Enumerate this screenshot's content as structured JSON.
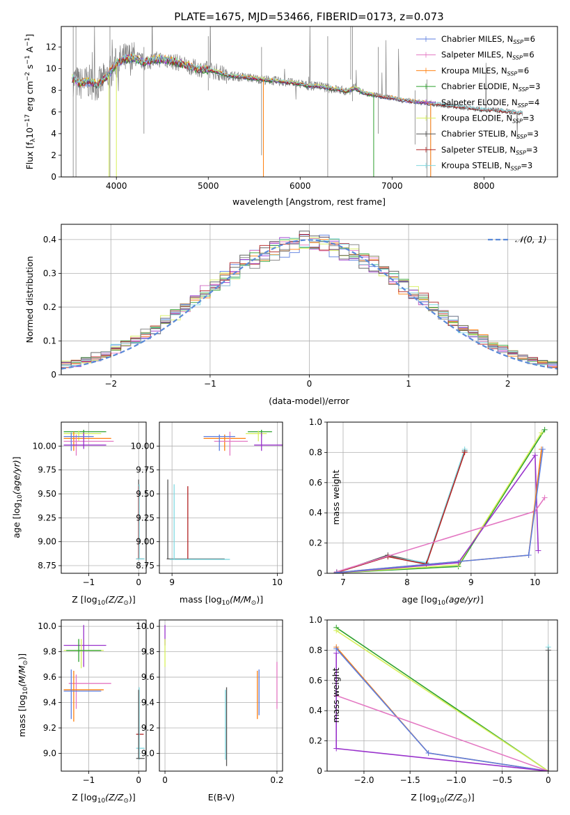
{
  "figure": {
    "title": "PLATE=1675, MJD=53466, FIBERID=0173, z=0.073"
  },
  "colors": {
    "chabrier_miles": "#5b7ee0",
    "salpeter_miles": "#e377c2",
    "kroupa_miles": "#ff7f0e",
    "chabrier_elodie": "#2ca02c",
    "salpeter_elodie": "#9932cc",
    "kroupa_elodie": "#d6ef5a",
    "chabrier_stelib": "#555555",
    "salpeter_stelib": "#b22222",
    "kroupa_stelib": "#7fd8e0",
    "data_gray": "#7f7f7f",
    "normal_curve": "#5b8ad8"
  },
  "chart_data": [
    {
      "id": "spectrum",
      "type": "line",
      "title": "PLATE=1675, MJD=53466, FIBERID=0173, z=0.073",
      "xlabel": "wavelength [Angstrom, rest frame]",
      "ylabel_main": "Flux [f",
      "ylabel_sub": "λ",
      "ylabel_rest": "10",
      "ylabel_tail": " erg cm",
      "xlim": [
        3400,
        8800
      ],
      "ylim": [
        0,
        13.9
      ],
      "xticks": [
        4000,
        5000,
        6000,
        7000,
        8000
      ],
      "yticks": [
        0,
        2,
        4,
        6,
        8,
        10,
        12
      ],
      "grid": false,
      "legend_position": "top-right",
      "legend": [
        {
          "prefix": "Chabrier MILES, N",
          "sub": "SSP",
          "suffix": "=6",
          "color_key": "chabrier_miles"
        },
        {
          "prefix": "Salpeter MILES, N",
          "sub": "SSP",
          "suffix": "=6",
          "color_key": "salpeter_miles"
        },
        {
          "prefix": "Kroupa MILES, N",
          "sub": "SSP",
          "suffix": "=6",
          "color_key": "kroupa_miles"
        },
        {
          "prefix": "Chabrier ELODIE, N",
          "sub": "SSP",
          "suffix": "=3",
          "color_key": "chabrier_elodie"
        },
        {
          "prefix": "Salpeter ELODIE, N",
          "sub": "SSP",
          "suffix": "=4",
          "color_key": "salpeter_elodie"
        },
        {
          "prefix": "Kroupa ELODIE, N",
          "sub": "SSP",
          "suffix": "=3",
          "color_key": "kroupa_elodie"
        },
        {
          "prefix": "Chabrier STELIB, N",
          "sub": "SSP",
          "suffix": "=3",
          "color_key": "chabrier_stelib"
        },
        {
          "prefix": "Salpeter STELIB, N",
          "sub": "SSP",
          "suffix": "=3",
          "color_key": "salpeter_stelib"
        },
        {
          "prefix": "Kroupa STELIB, N",
          "sub": "SSP",
          "suffix": "=3",
          "color_key": "kroupa_stelib"
        }
      ],
      "model_continuum": [
        [
          3500,
          9.2
        ],
        [
          3600,
          8.6
        ],
        [
          3700,
          8.8
        ],
        [
          3800,
          8.5
        ],
        [
          3900,
          9.3
        ],
        [
          4000,
          10.5
        ],
        [
          4100,
          10.9
        ],
        [
          4200,
          11.0
        ],
        [
          4300,
          10.6
        ],
        [
          4400,
          10.8
        ],
        [
          4500,
          10.9
        ],
        [
          4600,
          10.7
        ],
        [
          4700,
          10.5
        ],
        [
          4800,
          10.2
        ],
        [
          4900,
          10.0
        ],
        [
          5000,
          9.9
        ],
        [
          5100,
          9.7
        ],
        [
          5200,
          9.4
        ],
        [
          5300,
          9.3
        ],
        [
          5400,
          9.2
        ],
        [
          5500,
          9.1
        ],
        [
          5600,
          9.0
        ],
        [
          5700,
          8.9
        ],
        [
          5800,
          8.8
        ],
        [
          5900,
          8.7
        ],
        [
          6000,
          8.6
        ],
        [
          6100,
          8.4
        ],
        [
          6200,
          8.4
        ],
        [
          6300,
          8.2
        ],
        [
          6400,
          8.1
        ],
        [
          6500,
          7.9
        ],
        [
          6600,
          8.2
        ],
        [
          6700,
          7.7
        ],
        [
          6800,
          7.6
        ],
        [
          6900,
          7.4
        ],
        [
          7000,
          7.3
        ],
        [
          7100,
          7.1
        ],
        [
          7200,
          7.0
        ],
        [
          7300,
          6.9
        ],
        [
          7400,
          6.8
        ],
        [
          7500,
          6.7
        ],
        [
          7600,
          6.6
        ],
        [
          7700,
          6.5
        ],
        [
          7800,
          6.4
        ],
        [
          7900,
          6.3
        ],
        [
          8000,
          6.2
        ],
        [
          8100,
          6.2
        ],
        [
          8200,
          6.1
        ],
        [
          8300,
          6.0
        ],
        [
          8400,
          5.9
        ]
      ],
      "data_range": [
        3530,
        8420
      ]
    },
    {
      "id": "residuals",
      "type": "bar",
      "xlabel": "(data-model)/error",
      "ylabel": "Normed distribution",
      "xlim": [
        -2.5,
        2.5
      ],
      "ylim": [
        0,
        0.445
      ],
      "xticks": [
        -2,
        -1,
        0,
        1,
        2
      ],
      "yticks": [
        0.0,
        0.1,
        0.2,
        0.3,
        0.4
      ],
      "grid": true,
      "legend_position": "top-right",
      "legend": [
        {
          "label": "𝒩(0, 1)",
          "color_key": "normal_curve"
        }
      ],
      "bin_width": 0.1
    },
    {
      "id": "age-vs-Z",
      "type": "scatter",
      "xlabel_prefix": "Z [log",
      "xlabel_sub": "10",
      "xlabel_suffix": "(Z/Z",
      "ylabel": "age  [log10(age/yr)]",
      "xlim": [
        -1.55,
        0.15
      ],
      "ylim": [
        8.67,
        10.25
      ],
      "xticks": [
        -1,
        0
      ],
      "yticks": [
        8.75,
        9.0,
        9.25,
        9.5,
        9.75,
        10.0
      ],
      "grid": true
    },
    {
      "id": "age-vs-mass",
      "type": "scatter",
      "xlabel": "mass [log10(M/M⊙)]",
      "ylabel": "",
      "xlim": [
        8.88,
        10.05
      ],
      "ylim": [
        8.67,
        10.25
      ],
      "xticks": [
        9,
        10
      ],
      "yticks": [
        8.75,
        9.0,
        9.25,
        9.5,
        9.75,
        10.0
      ],
      "grid": true
    },
    {
      "id": "mass-weight-vs-age",
      "type": "line",
      "xlabel": "age  [log10(age/yr)]",
      "ylabel": "mass weight",
      "xlim": [
        6.75,
        10.35
      ],
      "ylim": [
        0,
        1.0
      ],
      "xticks": [
        7,
        8,
        9,
        10
      ],
      "yticks": [
        0.0,
        0.2,
        0.4,
        0.6,
        0.8,
        1.0
      ],
      "grid": true,
      "series": [
        {
          "color_key": "chabrier_stelib",
          "x": [
            6.9,
            7.7,
            8.3,
            8.9
          ],
          "y": [
            0.005,
            0.12,
            0.065,
            0.81
          ]
        },
        {
          "color_key": "kroupa_stelib",
          "x": [
            6.9,
            7.7,
            8.3,
            8.9
          ],
          "y": [
            0.005,
            0.11,
            0.07,
            0.82
          ]
        },
        {
          "color_key": "salpeter_stelib",
          "x": [
            6.9,
            7.7,
            8.3,
            8.9
          ],
          "y": [
            0.005,
            0.11,
            0.06,
            0.8
          ]
        },
        {
          "color_key": "chabrier_elodie",
          "x": [
            6.9,
            8.8,
            10.15
          ],
          "y": [
            0.003,
            0.045,
            0.95
          ]
        },
        {
          "color_key": "kroupa_elodie",
          "x": [
            6.9,
            8.8,
            10.1
          ],
          "y": [
            0.003,
            0.055,
            0.93
          ]
        },
        {
          "color_key": "salpeter_elodie",
          "x": [
            6.9,
            8.8,
            10.0,
            10.05
          ],
          "y": [
            0.003,
            0.07,
            0.78,
            0.15
          ]
        },
        {
          "color_key": "salpeter_miles",
          "x": [
            6.9,
            10.0,
            10.15
          ],
          "y": [
            0.01,
            0.41,
            0.5
          ]
        },
        {
          "color_key": "kroupa_miles",
          "x": [
            6.9,
            9.9,
            10.1
          ],
          "y": [
            0.005,
            0.12,
            0.82
          ]
        },
        {
          "color_key": "chabrier_miles",
          "x": [
            6.9,
            9.9,
            10.12
          ],
          "y": [
            0.005,
            0.12,
            0.82
          ]
        }
      ]
    },
    {
      "id": "mass-vs-Z",
      "type": "scatter",
      "xlabel_prefix": "Z [log",
      "xlabel_sub": "10",
      "xlabel_suffix": "(Z/Z",
      "ylabel": "mass [log10(M/M⊙)]",
      "xlim": [
        -1.55,
        0.15
      ],
      "ylim": [
        8.86,
        10.05
      ],
      "xticks": [
        -1,
        0
      ],
      "yticks": [
        9.0,
        9.2,
        9.4,
        9.6,
        9.8,
        10.0
      ],
      "grid": true
    },
    {
      "id": "mass-vs-EBV",
      "type": "scatter",
      "xlabel": "E(B-V)",
      "ylabel": "",
      "xlim": [
        -0.01,
        0.21
      ],
      "ylim": [
        8.86,
        10.05
      ],
      "xticks": [
        0.0,
        0.2
      ],
      "yticks": [
        9.0,
        9.2,
        9.4,
        9.6,
        9.8,
        10.0
      ],
      "grid": true
    },
    {
      "id": "mass-weight-vs-Z",
      "type": "line",
      "xlabel": "Z [log10(Z/Z⊙)]",
      "ylabel": "mass weight",
      "xlim": [
        -2.4,
        0.1
      ],
      "ylim": [
        0,
        1.0
      ],
      "xticks": [
        -2.0,
        -1.5,
        -1.0,
        -0.5,
        0.0
      ],
      "yticks": [
        0.0,
        0.2,
        0.4,
        0.6,
        0.8,
        1.0
      ],
      "grid": true,
      "series": [
        {
          "color_key": "chabrier_elodie",
          "x": [
            -2.3,
            0.0
          ],
          "y": [
            0.95,
            0.0
          ]
        },
        {
          "color_key": "kroupa_elodie",
          "x": [
            -2.3,
            0.0
          ],
          "y": [
            0.93,
            0.0
          ]
        },
        {
          "color_key": "kroupa_miles",
          "x": [
            -2.3,
            -1.3,
            0.0
          ],
          "y": [
            0.82,
            0.12,
            0.0
          ]
        },
        {
          "color_key": "chabrier_miles",
          "x": [
            -2.3,
            -1.3,
            0.0
          ],
          "y": [
            0.81,
            0.12,
            0.0
          ]
        },
        {
          "color_key": "salpeter_miles",
          "x": [
            -2.3,
            0.0
          ],
          "y": [
            0.5,
            0.0
          ]
        },
        {
          "color_key": "salpeter_elodie",
          "x": [
            -2.3,
            -2.3,
            0.0
          ],
          "y": [
            0.78,
            0.15,
            0.0
          ]
        },
        {
          "color_key": "kroupa_stelib",
          "x": [
            0.0,
            0.0
          ],
          "y": [
            0.0,
            0.82
          ]
        },
        {
          "color_key": "chabrier_stelib",
          "x": [
            0.0,
            0.0
          ],
          "y": [
            0.0,
            0.8
          ]
        }
      ]
    }
  ]
}
